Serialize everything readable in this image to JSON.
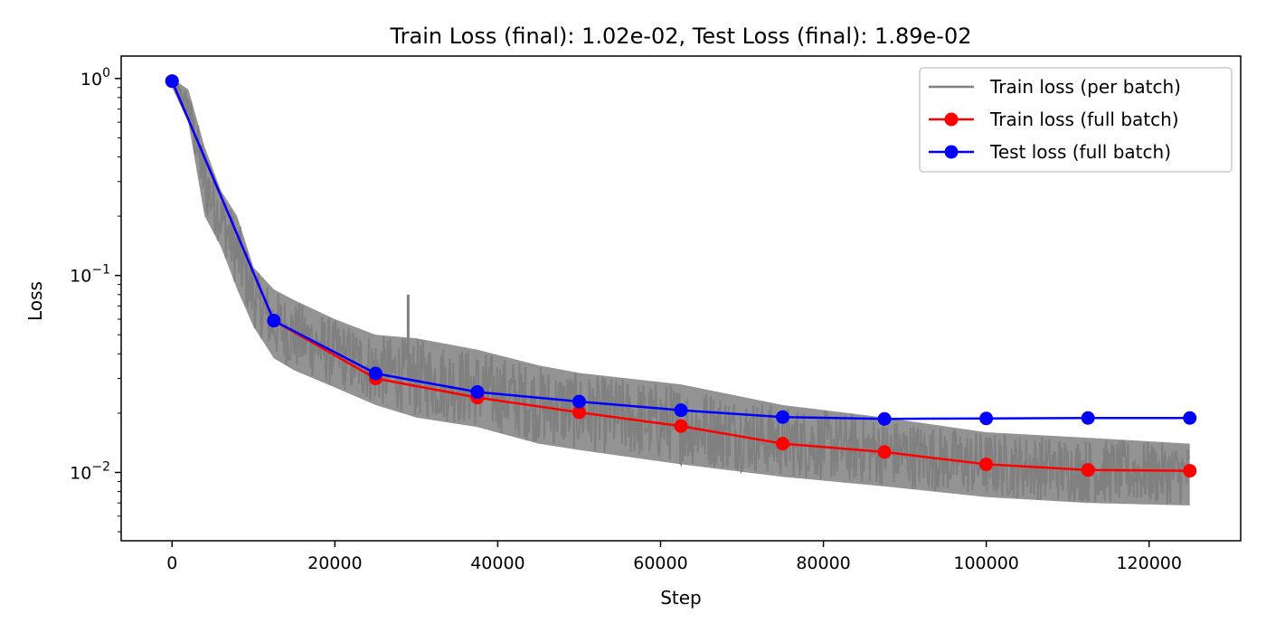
{
  "chart_data": {
    "type": "line",
    "title": "Train Loss (final): 1.02e-02, Test Loss (final): 1.89e-02",
    "xlabel": "Step",
    "ylabel": "Loss",
    "xlim": [
      -6250,
      131250
    ],
    "ylim": [
      0.0045,
      1.3
    ],
    "yscale": "log",
    "x_ticks": [
      0,
      20000,
      40000,
      60000,
      80000,
      100000,
      120000
    ],
    "x_tick_labels": [
      "0",
      "20000",
      "40000",
      "60000",
      "80000",
      "100000",
      "120000"
    ],
    "y_ticks": [
      {
        "value": 1,
        "base": "10",
        "exp": "0"
      },
      {
        "value": 0.1,
        "base": "10",
        "exp": "−1"
      },
      {
        "value": 0.01,
        "base": "10",
        "exp": "−2"
      }
    ],
    "grid": false,
    "legend_position": "top-right",
    "series": [
      {
        "name": "Train loss (per batch)",
        "color": "#808080",
        "marker": "none",
        "style": "noisy-line",
        "x": [
          0,
          2000,
          4000,
          6000,
          8000,
          10000,
          12500,
          15000,
          20000,
          25000,
          30000,
          37500,
          45000,
          50000,
          62500,
          75000,
          87500,
          100000,
          112500,
          125000
        ],
        "center": [
          0.97,
          0.75,
          0.3,
          0.2,
          0.13,
          0.085,
          0.06,
          0.052,
          0.042,
          0.033,
          0.028,
          0.025,
          0.021,
          0.02,
          0.017,
          0.014,
          0.0125,
          0.011,
          0.0102,
          0.0098
        ],
        "low": [
          0.9,
          0.6,
          0.2,
          0.14,
          0.085,
          0.055,
          0.038,
          0.033,
          0.027,
          0.022,
          0.019,
          0.017,
          0.014,
          0.013,
          0.011,
          0.0095,
          0.0085,
          0.0075,
          0.007,
          0.0068
        ],
        "high": [
          1.0,
          0.88,
          0.45,
          0.27,
          0.2,
          0.11,
          0.085,
          0.075,
          0.06,
          0.05,
          0.048,
          0.042,
          0.035,
          0.032,
          0.028,
          0.022,
          0.019,
          0.016,
          0.015,
          0.014
        ],
        "spike": {
          "x": 29000,
          "y": 0.08
        }
      },
      {
        "name": "Train loss (full batch)",
        "color": "#ff0000",
        "marker": "circle",
        "x": [
          0,
          12500,
          25000,
          37500,
          50000,
          62500,
          75000,
          87500,
          100000,
          112500,
          125000
        ],
        "values": [
          0.97,
          0.059,
          0.03,
          0.024,
          0.0202,
          0.0172,
          0.014,
          0.0127,
          0.011,
          0.0103,
          0.0102
        ]
      },
      {
        "name": "Test loss (full batch)",
        "color": "#0000ff",
        "marker": "circle",
        "x": [
          0,
          12500,
          25000,
          37500,
          50000,
          62500,
          75000,
          87500,
          100000,
          112500,
          125000
        ],
        "values": [
          0.97,
          0.059,
          0.0318,
          0.0256,
          0.0229,
          0.0207,
          0.0191,
          0.0187,
          0.0188,
          0.0189,
          0.0189
        ]
      }
    ]
  }
}
